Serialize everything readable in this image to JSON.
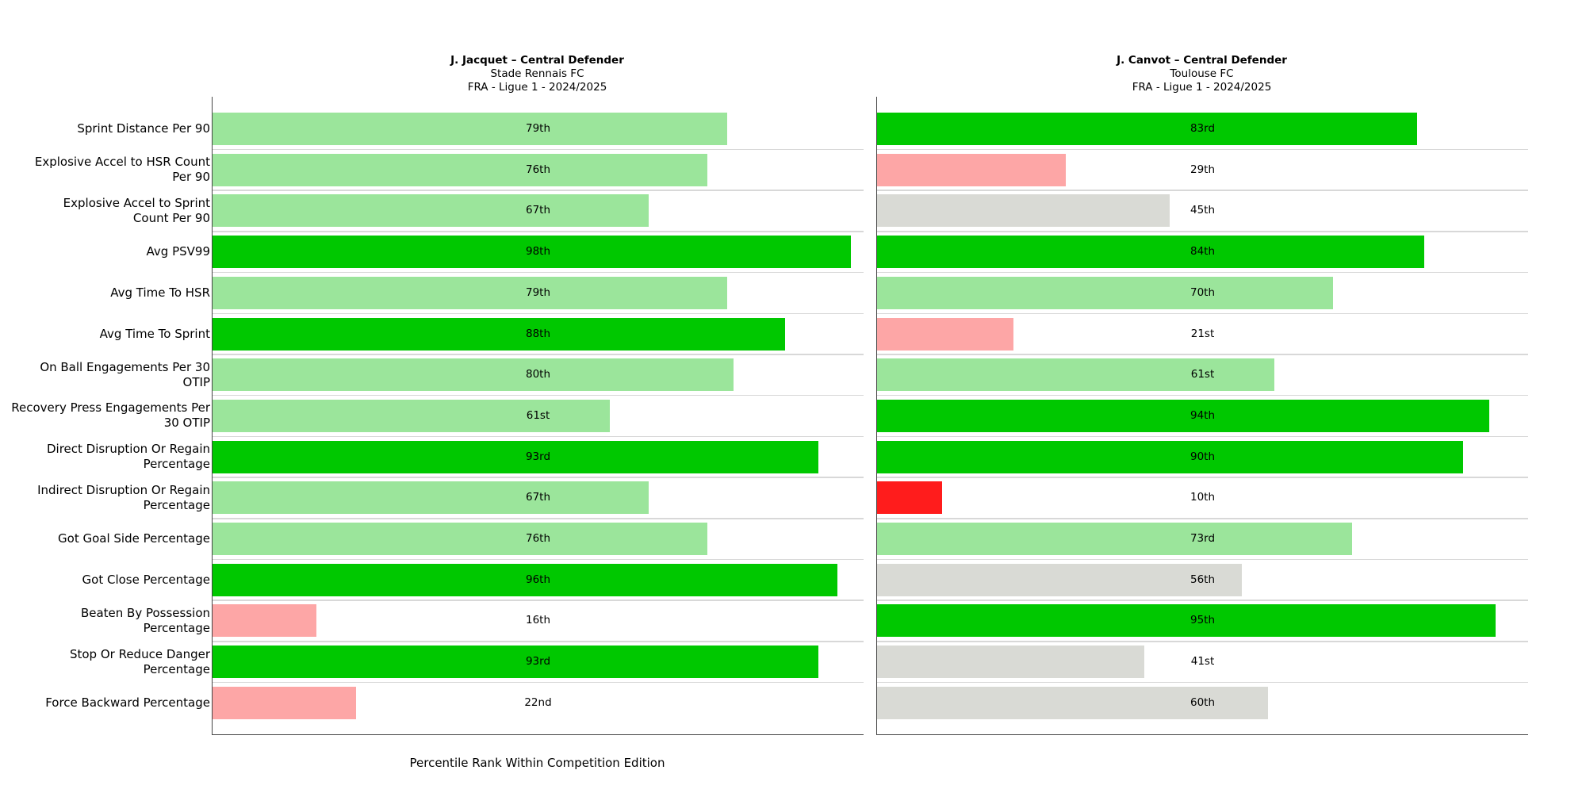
{
  "chart_data": {
    "type": "bar",
    "orientation": "horizontal",
    "xlabel": "Percentile Rank Within Competition Edition",
    "xlim": [
      0,
      100
    ],
    "categories": [
      "Sprint Distance Per 90",
      "Explosive Accel to HSR Count Per 90",
      "Explosive Accel to Sprint Count Per 90",
      "Avg PSV99",
      "Avg Time To HSR",
      "Avg Time To Sprint",
      "On Ball Engagements Per 30 OTIP",
      "Recovery Press Engagements Per 30 OTIP",
      "Direct Disruption Or Regain Percentage",
      "Indirect Disruption Or Regain Percentage",
      "Got Goal Side Percentage",
      "Got Close Percentage",
      "Beaten By Possession Percentage",
      "Stop Or Reduce Danger Percentage",
      "Force Backward Percentage"
    ],
    "category_lines": [
      [
        "Sprint Distance Per 90"
      ],
      [
        "Explosive Accel to HSR Count",
        "Per 90"
      ],
      [
        "Explosive Accel to Sprint",
        "Count Per 90"
      ],
      [
        "Avg PSV99"
      ],
      [
        "Avg Time To HSR"
      ],
      [
        "Avg Time To Sprint"
      ],
      [
        "On Ball Engagements Per 30",
        "OTIP"
      ],
      [
        "Recovery Press Engagements Per",
        "30 OTIP"
      ],
      [
        "Direct Disruption Or Regain",
        "Percentage"
      ],
      [
        "Indirect Disruption Or Regain",
        "Percentage"
      ],
      [
        "Got Goal Side Percentage"
      ],
      [
        "Got Close Percentage"
      ],
      [
        "Beaten By Possession",
        "Percentage"
      ],
      [
        "Stop Or Reduce Danger",
        "Percentage"
      ],
      [
        "Force Backward Percentage"
      ]
    ],
    "colors": {
      "elite": "#00c800",
      "good": "#9be59b",
      "average": "#d9dad5",
      "poor": "#fda6a6",
      "bad": "#ff1c1c"
    },
    "series": [
      {
        "name": "J. Jacquet – Central Defender",
        "team": "Stade Rennais FC",
        "competition": "FRA - Ligue 1 - 2024/2025",
        "values": [
          79,
          76,
          67,
          98,
          79,
          88,
          80,
          61,
          93,
          67,
          76,
          96,
          16,
          93,
          22
        ],
        "labels": [
          "79th",
          "76th",
          "67th",
          "98th",
          "79th",
          "88th",
          "80th",
          "61st",
          "93rd",
          "67th",
          "76th",
          "96th",
          "16th",
          "93rd",
          "22nd"
        ]
      },
      {
        "name": "J. Canvot – Central Defender",
        "team": "Toulouse FC",
        "competition": "FRA - Ligue 1 - 2024/2025",
        "values": [
          83,
          29,
          45,
          84,
          70,
          21,
          61,
          94,
          90,
          10,
          73,
          56,
          95,
          41,
          60
        ],
        "labels": [
          "83rd",
          "29th",
          "45th",
          "84th",
          "70th",
          "21st",
          "61st",
          "94th",
          "90th",
          "10th",
          "73rd",
          "56th",
          "95th",
          "41st",
          "60th"
        ]
      }
    ]
  }
}
